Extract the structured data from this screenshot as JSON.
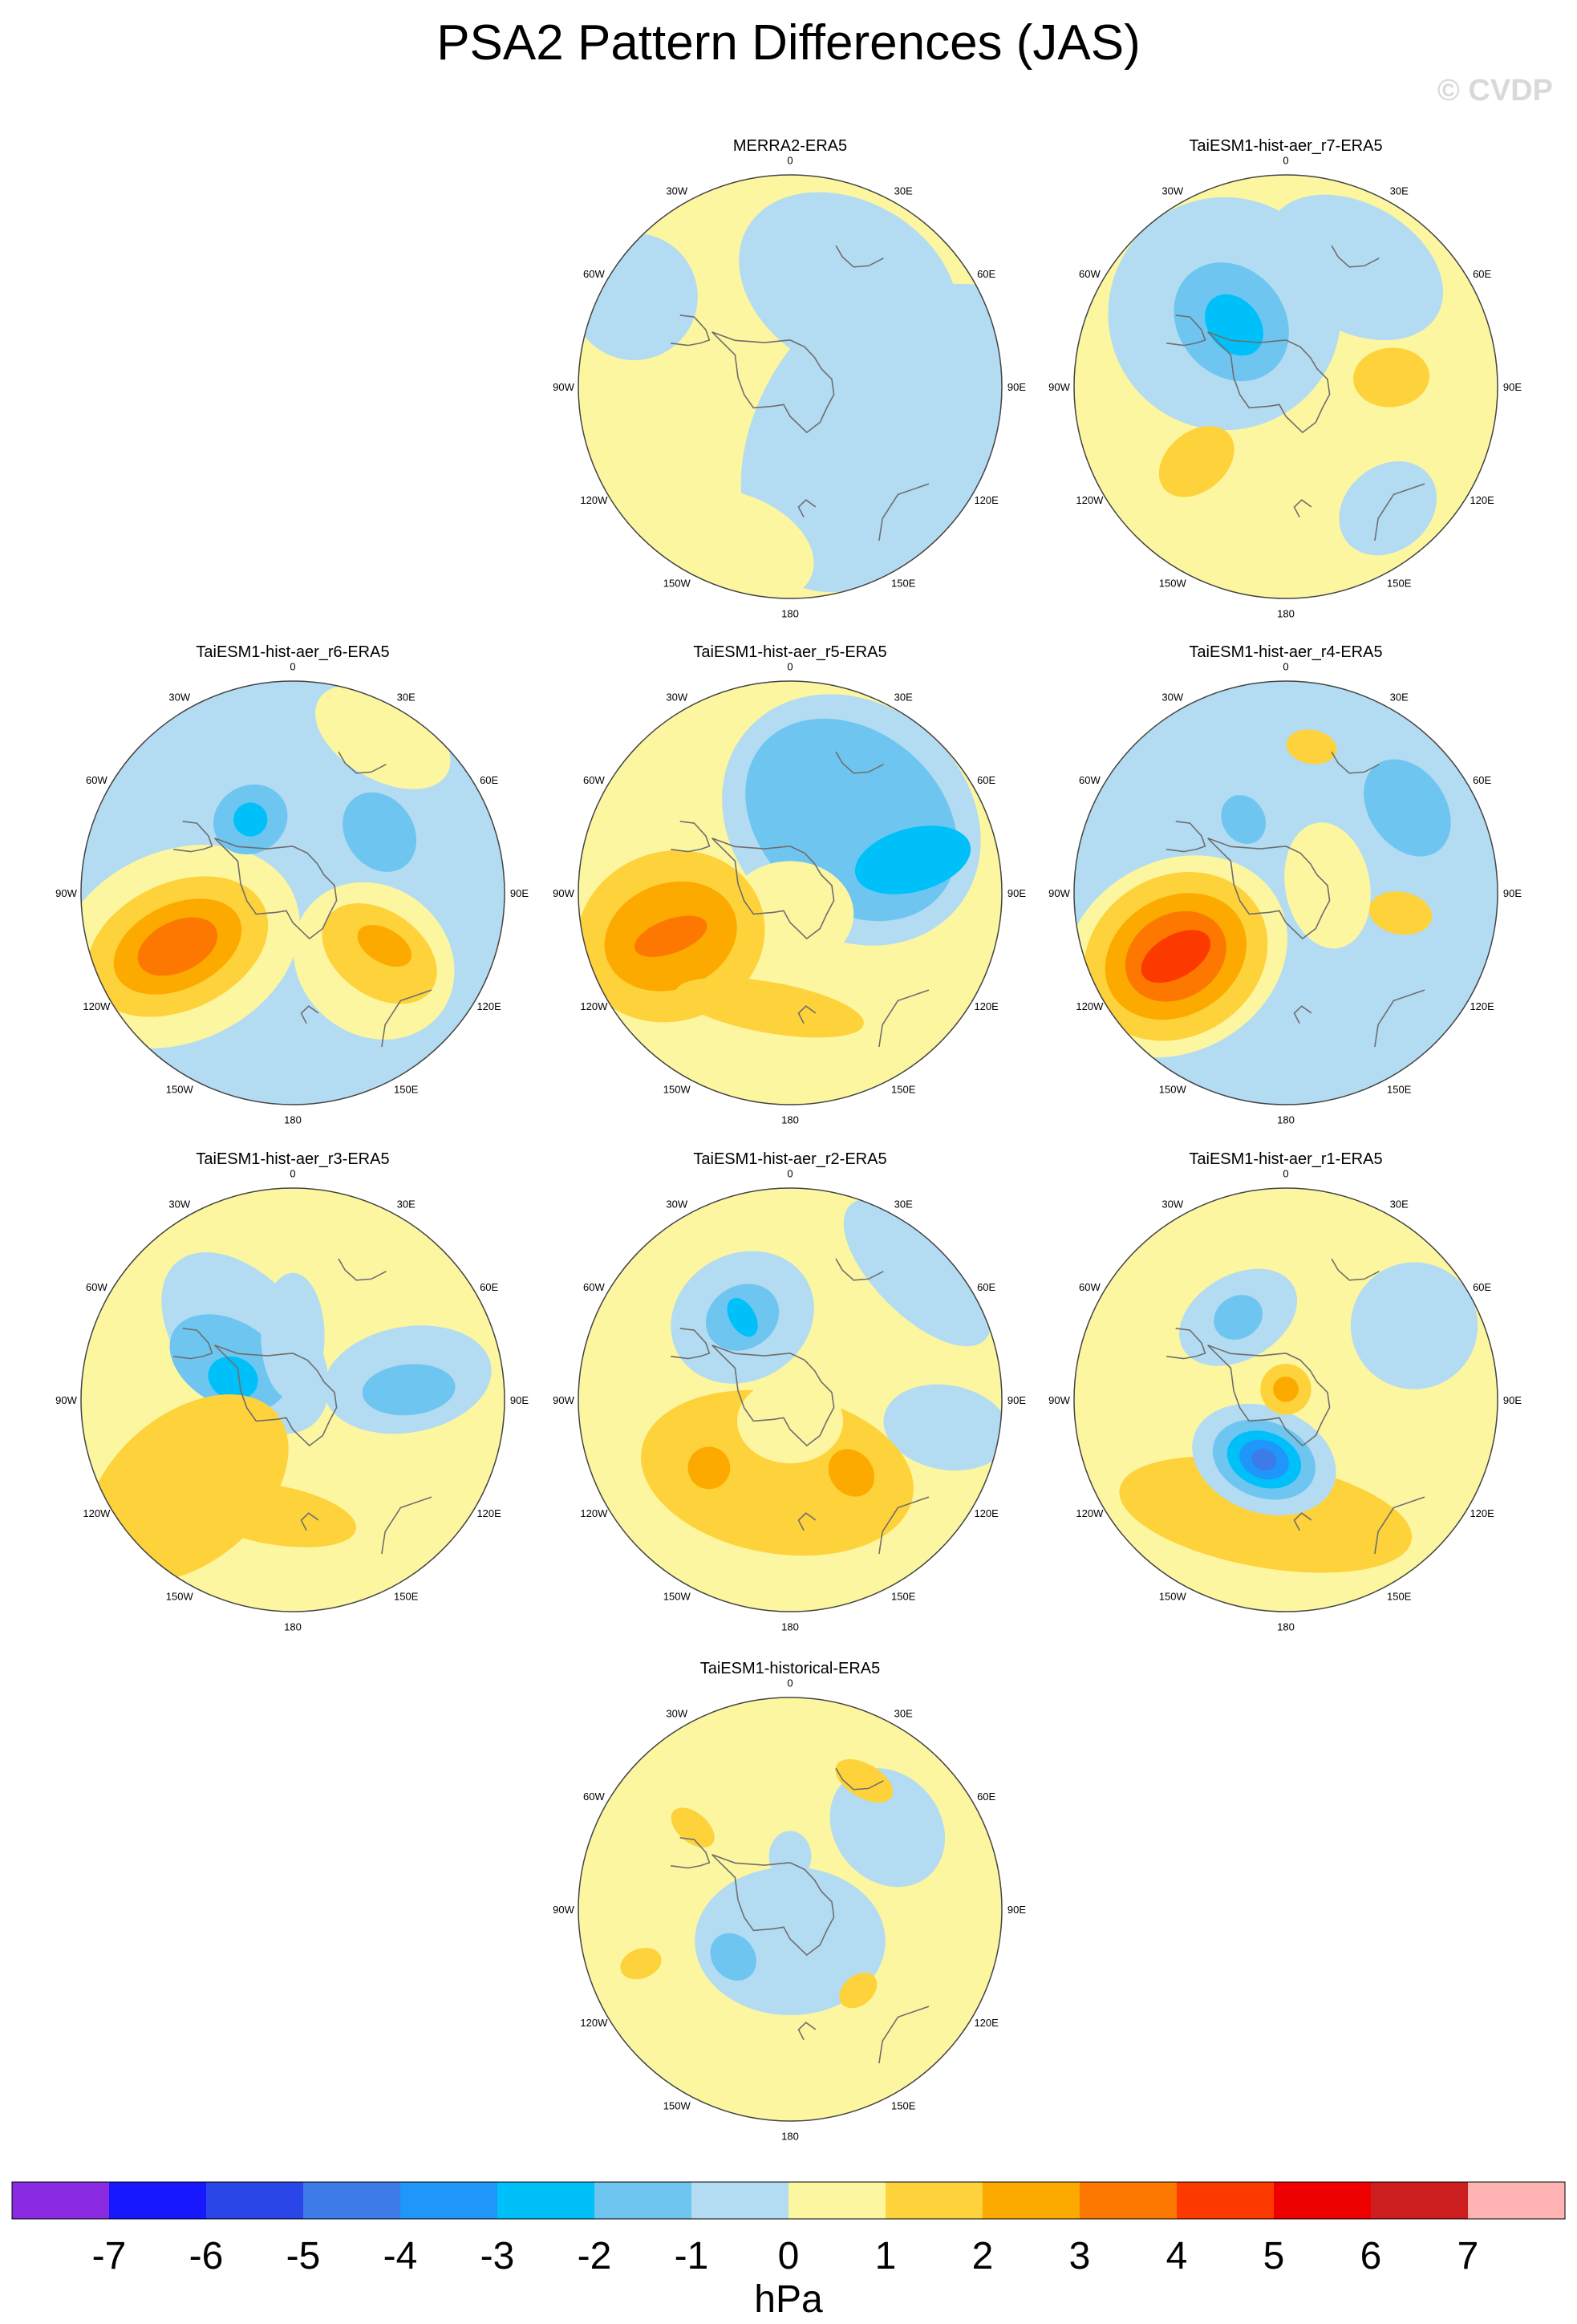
{
  "title": "PSA2 Pattern Differences (JAS)",
  "watermark": "© CVDP",
  "colors": {
    "levels": [
      "#8a2be2",
      "#1818ff",
      "#2a46e8",
      "#3d7be8",
      "#1e96fa",
      "#00c0fa",
      "#6ec6f0",
      "#b3dcf2",
      "#fdf6a0",
      "#fdd23a",
      "#fcaa00",
      "#fd7800",
      "#fc3a00",
      "#ee0000",
      "#cc1e1e",
      "#ffb3b3"
    ],
    "coast": "#6e6e6e",
    "ring": "#444444"
  },
  "chart_data": {
    "type": "heatmap",
    "projection": "south-polar-stereographic",
    "units": "hPa",
    "colorbar": {
      "ticks": [
        "-7",
        "-6",
        "-5",
        "-4",
        "-3",
        "-2",
        "-1",
        "0",
        "1",
        "2",
        "3",
        "4",
        "5",
        "6",
        "7"
      ],
      "unit_label": "hPa"
    },
    "longitude_labels": [
      "0",
      "30E",
      "60E",
      "90E",
      "120E",
      "150E",
      "180",
      "150W",
      "120W",
      "90W",
      "60W",
      "30W"
    ],
    "panels": [
      {
        "title": "MERRA2-ERA5",
        "background_level": 0,
        "features": [
          {
            "lon": 120,
            "r": 0.45,
            "level": -1,
            "rx": 0.8,
            "ry": 0.55
          },
          {
            "lon": 30,
            "r": 0.55,
            "level": -1,
            "rx": 0.55,
            "ry": 0.4
          },
          {
            "lon": 80,
            "r": 0.75,
            "level": -1,
            "rx": 0.35,
            "ry": 0.5
          },
          {
            "lon": 200,
            "r": 0.8,
            "level": 0,
            "rx": 0.4,
            "ry": 0.25
          },
          {
            "lon": 280,
            "r": 0.7,
            "level": 0,
            "rx": 0.45,
            "ry": 0.3
          },
          {
            "lon": 300,
            "r": 0.85,
            "level": -1,
            "rx": 0.3,
            "ry": 0.3
          }
        ]
      },
      {
        "title": "TaiESM1-hist-aer_r7-ERA5",
        "background_level": 0,
        "features": [
          {
            "lon": 320,
            "r": 0.45,
            "level": -1,
            "rx": 0.55,
            "ry": 0.55
          },
          {
            "lon": 320,
            "r": 0.4,
            "level": -2,
            "rx": 0.25,
            "ry": 0.3
          },
          {
            "lon": 320,
            "r": 0.38,
            "level": -3,
            "rx": 0.12,
            "ry": 0.16
          },
          {
            "lon": 30,
            "r": 0.65,
            "level": -1,
            "rx": 0.45,
            "ry": 0.3
          },
          {
            "lon": 85,
            "r": 0.5,
            "level": 1,
            "rx": 0.14,
            "ry": 0.18
          },
          {
            "lon": 230,
            "r": 0.55,
            "level": 1,
            "rx": 0.14,
            "ry": 0.2
          },
          {
            "lon": 140,
            "r": 0.75,
            "level": -1,
            "rx": 0.25,
            "ry": 0.2
          }
        ]
      },
      {
        "title": "TaiESM1-hist-aer_r6-ERA5",
        "background_level": -1,
        "features": [
          {
            "lon": 245,
            "r": 0.6,
            "level": 0,
            "rx": 0.45,
            "ry": 0.6
          },
          {
            "lon": 245,
            "r": 0.6,
            "level": 1,
            "rx": 0.3,
            "ry": 0.45
          },
          {
            "lon": 245,
            "r": 0.6,
            "level": 2,
            "rx": 0.2,
            "ry": 0.32
          },
          {
            "lon": 245,
            "r": 0.6,
            "level": 3,
            "rx": 0.12,
            "ry": 0.2
          },
          {
            "lon": 130,
            "r": 0.5,
            "level": 0,
            "rx": 0.35,
            "ry": 0.4
          },
          {
            "lon": 125,
            "r": 0.5,
            "level": 1,
            "rx": 0.2,
            "ry": 0.3
          },
          {
            "lon": 120,
            "r": 0.5,
            "level": 2,
            "rx": 0.08,
            "ry": 0.14
          },
          {
            "lon": 330,
            "r": 0.4,
            "level": -2,
            "rx": 0.18,
            "ry": 0.16
          },
          {
            "lon": 330,
            "r": 0.4,
            "level": -3,
            "rx": 0.08,
            "ry": 0.08
          },
          {
            "lon": 30,
            "r": 0.85,
            "level": 0,
            "rx": 0.35,
            "ry": 0.2
          },
          {
            "lon": 55,
            "r": 0.5,
            "level": -2,
            "rx": 0.2,
            "ry": 0.16
          }
        ]
      },
      {
        "title": "TaiESM1-hist-aer_r5-ERA5",
        "background_level": 0,
        "features": [
          {
            "lon": 40,
            "r": 0.45,
            "level": -1,
            "rx": 0.65,
            "ry": 0.55
          },
          {
            "lon": 40,
            "r": 0.45,
            "level": -2,
            "rx": 0.55,
            "ry": 0.42
          },
          {
            "lon": 75,
            "r": 0.6,
            "level": -3,
            "rx": 0.15,
            "ry": 0.28
          },
          {
            "lon": 180,
            "r": 0.1,
            "level": 0,
            "rx": 0.3,
            "ry": 0.25
          },
          {
            "lon": 250,
            "r": 0.6,
            "level": 1,
            "rx": 0.4,
            "ry": 0.45
          },
          {
            "lon": 250,
            "r": 0.6,
            "level": 2,
            "rx": 0.25,
            "ry": 0.32
          },
          {
            "lon": 250,
            "r": 0.6,
            "level": 3,
            "rx": 0.08,
            "ry": 0.18
          },
          {
            "lon": 190,
            "r": 0.55,
            "level": 1,
            "rx": 0.45,
            "ry": 0.12
          }
        ]
      },
      {
        "title": "TaiESM1-hist-aer_r4-ERA5",
        "background_level": -1,
        "features": [
          {
            "lon": 240,
            "r": 0.6,
            "level": 0,
            "rx": 0.45,
            "ry": 0.55
          },
          {
            "lon": 240,
            "r": 0.6,
            "level": 1,
            "rx": 0.38,
            "ry": 0.45
          },
          {
            "lon": 240,
            "r": 0.6,
            "level": 2,
            "rx": 0.28,
            "ry": 0.35
          },
          {
            "lon": 240,
            "r": 0.6,
            "level": 3,
            "rx": 0.2,
            "ry": 0.25
          },
          {
            "lon": 240,
            "r": 0.6,
            "level": 4,
            "rx": 0.1,
            "ry": 0.18
          },
          {
            "lon": 10,
            "r": 0.7,
            "level": 1,
            "rx": 0.12,
            "ry": 0.08
          },
          {
            "lon": 100,
            "r": 0.55,
            "level": 1,
            "rx": 0.1,
            "ry": 0.15
          },
          {
            "lon": 330,
            "r": 0.4,
            "level": -2,
            "rx": 0.1,
            "ry": 0.12
          },
          {
            "lon": 55,
            "r": 0.7,
            "level": -2,
            "rx": 0.25,
            "ry": 0.18
          },
          {
            "lon": 80,
            "r": 0.2,
            "level": 0,
            "rx": 0.3,
            "ry": 0.2
          }
        ]
      },
      {
        "title": "TaiESM1-hist-aer_r3-ERA5",
        "background_level": 0,
        "features": [
          {
            "lon": 320,
            "r": 0.35,
            "level": -1,
            "rx": 0.3,
            "ry": 0.5
          },
          {
            "lon": 300,
            "r": 0.35,
            "level": -2,
            "rx": 0.2,
            "ry": 0.3
          },
          {
            "lon": 290,
            "r": 0.3,
            "level": -3,
            "rx": 0.1,
            "ry": 0.12
          },
          {
            "lon": 80,
            "r": 0.55,
            "level": -1,
            "rx": 0.25,
            "ry": 0.4
          },
          {
            "lon": 85,
            "r": 0.55,
            "level": -2,
            "rx": 0.12,
            "ry": 0.22
          },
          {
            "lon": 230,
            "r": 0.65,
            "level": 1,
            "rx": 0.35,
            "ry": 0.55
          },
          {
            "lon": 190,
            "r": 0.55,
            "level": 1,
            "rx": 0.4,
            "ry": 0.14
          },
          {
            "lon": 0,
            "r": 0.3,
            "level": -1,
            "rx": 0.15,
            "ry": 0.3
          }
        ]
      },
      {
        "title": "TaiESM1-hist-aer_r2-ERA5",
        "background_level": 0,
        "features": [
          {
            "lon": 330,
            "r": 0.45,
            "level": -1,
            "rx": 0.35,
            "ry": 0.3
          },
          {
            "lon": 330,
            "r": 0.45,
            "level": -2,
            "rx": 0.18,
            "ry": 0.15
          },
          {
            "lon": 330,
            "r": 0.45,
            "level": -3,
            "rx": 0.06,
            "ry": 0.1
          },
          {
            "lon": 45,
            "r": 0.85,
            "level": -1,
            "rx": 0.45,
            "ry": 0.2
          },
          {
            "lon": 100,
            "r": 0.75,
            "level": -1,
            "rx": 0.2,
            "ry": 0.3
          },
          {
            "lon": 190,
            "r": 0.35,
            "level": 1,
            "rx": 0.65,
            "ry": 0.38
          },
          {
            "lon": 230,
            "r": 0.5,
            "level": 2,
            "rx": 0.1,
            "ry": 0.1
          },
          {
            "lon": 140,
            "r": 0.45,
            "level": 2,
            "rx": 0.1,
            "ry": 0.12
          },
          {
            "lon": 180,
            "r": 0.1,
            "level": 0,
            "rx": 0.25,
            "ry": 0.2
          }
        ]
      },
      {
        "title": "TaiESM1-hist-aer_r1-ERA5",
        "background_level": 0,
        "features": [
          {
            "lon": 190,
            "r": 0.55,
            "level": 1,
            "rx": 0.7,
            "ry": 0.25
          },
          {
            "lon": 200,
            "r": 0.3,
            "level": -1,
            "rx": 0.35,
            "ry": 0.25
          },
          {
            "lon": 200,
            "r": 0.3,
            "level": -2,
            "rx": 0.25,
            "ry": 0.18
          },
          {
            "lon": 200,
            "r": 0.3,
            "level": -3,
            "rx": 0.18,
            "ry": 0.13
          },
          {
            "lon": 200,
            "r": 0.3,
            "level": -4,
            "rx": 0.12,
            "ry": 0.09
          },
          {
            "lon": 200,
            "r": 0.3,
            "level": -5,
            "rx": 0.06,
            "ry": 0.05
          },
          {
            "lon": 330,
            "r": 0.45,
            "level": -1,
            "rx": 0.3,
            "ry": 0.2
          },
          {
            "lon": 330,
            "r": 0.45,
            "level": -2,
            "rx": 0.12,
            "ry": 0.1
          },
          {
            "lon": 0,
            "r": 0.05,
            "level": 1,
            "rx": 0.12,
            "ry": 0.12
          },
          {
            "lon": 0,
            "r": 0.05,
            "level": 2,
            "rx": 0.06,
            "ry": 0.06
          },
          {
            "lon": 60,
            "r": 0.7,
            "level": -1,
            "rx": 0.3,
            "ry": 0.3
          }
        ]
      },
      {
        "title": "TaiESM1-historical-ERA5",
        "background_level": 0,
        "features": [
          {
            "lon": 180,
            "r": 0.15,
            "level": -1,
            "rx": 0.45,
            "ry": 0.35
          },
          {
            "lon": 230,
            "r": 0.35,
            "level": -2,
            "rx": 0.12,
            "ry": 0.1
          },
          {
            "lon": 50,
            "r": 0.6,
            "level": -1,
            "rx": 0.3,
            "ry": 0.25
          },
          {
            "lon": 30,
            "r": 0.7,
            "level": 1,
            "rx": 0.15,
            "ry": 0.08
          },
          {
            "lon": 310,
            "r": 0.6,
            "level": 1,
            "rx": 0.07,
            "ry": 0.12
          },
          {
            "lon": 250,
            "r": 0.75,
            "level": 1,
            "rx": 0.07,
            "ry": 0.1
          },
          {
            "lon": 140,
            "r": 0.5,
            "level": 1,
            "rx": 0.1,
            "ry": 0.07
          },
          {
            "lon": 0,
            "r": 0.25,
            "level": -1,
            "rx": 0.1,
            "ry": 0.12
          }
        ]
      }
    ]
  }
}
